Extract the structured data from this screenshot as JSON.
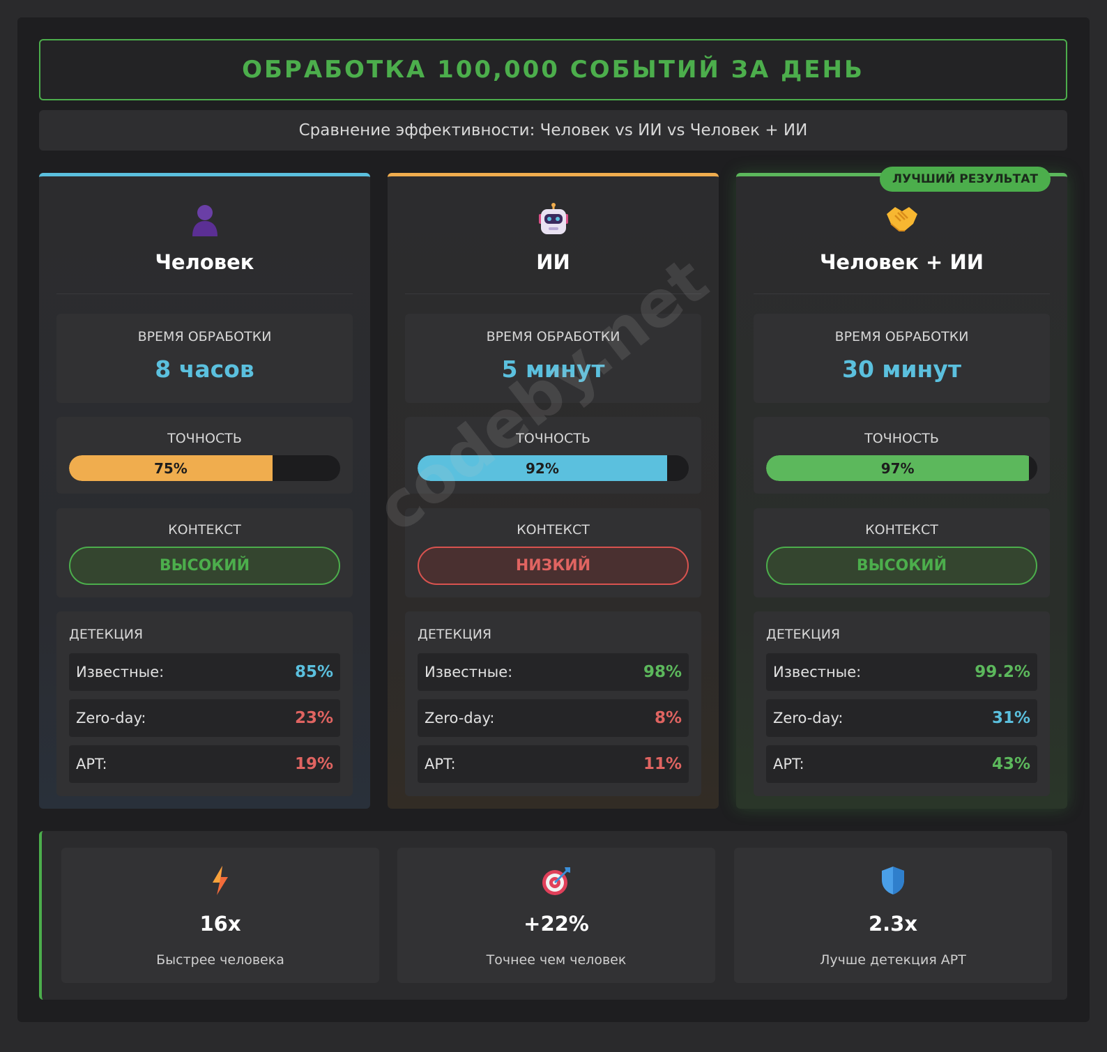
{
  "header": {
    "title": "ОБРАБОТКА 100,000 СОБЫТИЙ ЗА ДЕНЬ",
    "subtitle": "Сравнение эффективности: Человек vs ИИ vs Человек + ИИ"
  },
  "labels": {
    "time": "ВРЕМЯ ОБРАБОТКИ",
    "accuracy": "ТОЧНОСТЬ",
    "context": "КОНТЕКСТ",
    "detection": "ДЕТЕКЦИЯ",
    "known": "Известные:",
    "zeroday": "Zero-day:",
    "apt": "APT:",
    "best": "ЛУЧШИЙ РЕЗУЛЬТАТ"
  },
  "cards": [
    {
      "icon": "person-silhouette-icon",
      "name": "Человек",
      "time": "8 часов",
      "accuracy_label": "75%",
      "accuracy": 75,
      "accuracy_color": "#f0ad4e",
      "context": "ВЫСОКИЙ",
      "known": "85%",
      "known_color": "#5bc0de",
      "zeroday": "23%",
      "zeroday_color": "#e06461",
      "apt": "19%",
      "apt_color": "#e06461"
    },
    {
      "icon": "robot-icon",
      "name": "ИИ",
      "time": "5 минут",
      "accuracy_label": "92%",
      "accuracy": 92,
      "accuracy_color": "#5bc0de",
      "context": "НИЗКИЙ",
      "known": "98%",
      "known_color": "#5cb85c",
      "zeroday": "8%",
      "zeroday_color": "#e06461",
      "apt": "11%",
      "apt_color": "#e06461"
    },
    {
      "icon": "handshake-icon",
      "name": "Человек + ИИ",
      "time": "30 минут",
      "accuracy_label": "97%",
      "accuracy": 97,
      "accuracy_color": "#5cb85c",
      "context": "ВЫСОКИЙ",
      "known": "99.2%",
      "known_color": "#5cb85c",
      "zeroday": "31%",
      "zeroday_color": "#5bc0de",
      "apt": "43%",
      "apt_color": "#5cb85c"
    }
  ],
  "stats": [
    {
      "icon": "lightning-icon",
      "value": "16x",
      "desc": "Быстрее человека"
    },
    {
      "icon": "target-icon",
      "value": "+22%",
      "desc": "Точнее чем человек"
    },
    {
      "icon": "shield-icon",
      "value": "2.3x",
      "desc": "Лучше детекция APT"
    }
  ],
  "watermark": "codeby.net"
}
